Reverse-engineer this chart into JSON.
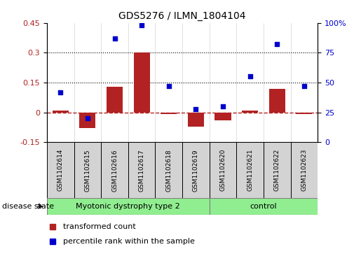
{
  "title": "GDS5276 / ILMN_1804104",
  "samples": [
    "GSM1102614",
    "GSM1102615",
    "GSM1102616",
    "GSM1102617",
    "GSM1102618",
    "GSM1102619",
    "GSM1102620",
    "GSM1102621",
    "GSM1102622",
    "GSM1102623"
  ],
  "transformed_count": [
    0.01,
    -0.08,
    0.13,
    0.3,
    -0.01,
    -0.07,
    -0.04,
    0.01,
    0.12,
    -0.01
  ],
  "percentile_rank": [
    42,
    20,
    87,
    98,
    47,
    28,
    30,
    55,
    82,
    47
  ],
  "left_ylim": [
    -0.15,
    0.45
  ],
  "left_yticks": [
    -0.15,
    0.0,
    0.15,
    0.3,
    0.45
  ],
  "left_yticklabels": [
    "-0.15",
    "0",
    "0.15",
    "0.3",
    "0.45"
  ],
  "right_ylim": [
    0,
    100
  ],
  "right_yticks": [
    0,
    25,
    50,
    75,
    100
  ],
  "right_yticklabels": [
    "0",
    "25",
    "50",
    "75",
    "100%"
  ],
  "bar_color": "#b22222",
  "scatter_color": "#0000cd",
  "hline_color": "#b22222",
  "dotted_line_y": [
    0.15,
    0.3
  ],
  "group1_label": "Myotonic dystrophy type 2",
  "group2_label": "control",
  "group_color": "#90ee90",
  "disease_state_label": "disease state",
  "legend_bar_label": "transformed count",
  "legend_scatter_label": "percentile rank within the sample",
  "label_bg_color": "#d3d3d3"
}
